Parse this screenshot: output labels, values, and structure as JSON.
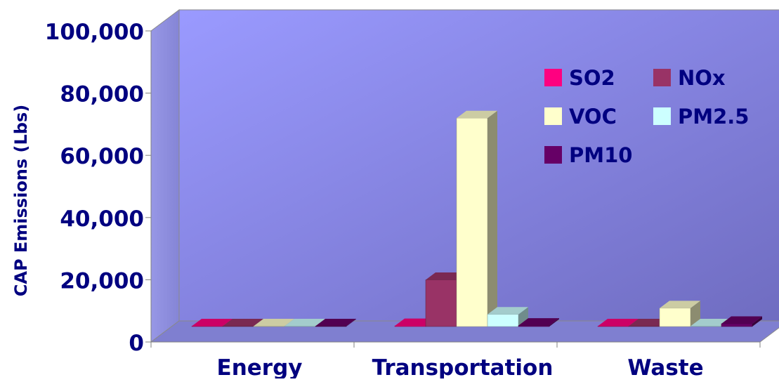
{
  "chart_data": {
    "type": "bar",
    "title": "",
    "xlabel": "",
    "ylabel": "CAP Emissions (Lbs)",
    "categories": [
      "Energy",
      "Transportation",
      "Waste"
    ],
    "ylim": [
      0,
      100000
    ],
    "yticks": [
      "0",
      "20,000",
      "40,000",
      "60,000",
      "80,000",
      "100,000"
    ],
    "ytick_values": [
      0,
      20000,
      40000,
      60000,
      80000,
      100000
    ],
    "series": [
      {
        "name": "SO2",
        "color": "#ff0080",
        "values": [
          100,
          200,
          100
        ]
      },
      {
        "name": "NOx",
        "color": "#993366",
        "values": [
          100,
          15000,
          100
        ]
      },
      {
        "name": "VOC",
        "color": "#ffffcc",
        "values": [
          100,
          67000,
          5900
        ]
      },
      {
        "name": "PM2.5",
        "color": "#ccffff",
        "values": [
          100,
          3900,
          100
        ]
      },
      {
        "name": "PM10",
        "color": "#660066",
        "values": [
          100,
          300,
          900
        ]
      }
    ],
    "legend_position": "top-right",
    "grid": false,
    "style": "3d-clustered-column"
  }
}
